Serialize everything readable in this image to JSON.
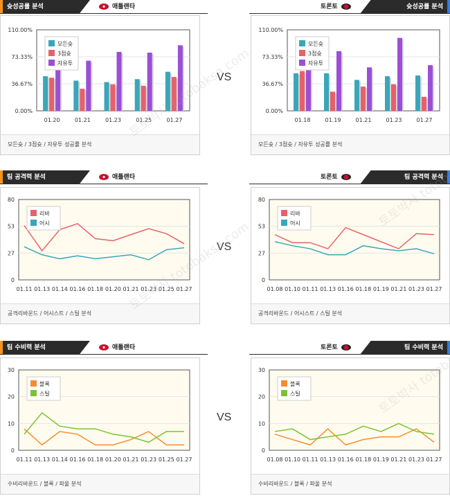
{
  "colors": {
    "accent_left": "#f7941d",
    "accent_right": "#3b7bd6",
    "header_bg": "#2b2b2b"
  },
  "vs_label": "VS",
  "watermark": "토토박사 totobaksa.com",
  "sections": [
    {
      "left": {
        "tab": "슛성공률 분석",
        "team": "애틀랜타",
        "team_logo": "hawks-logo-icon"
      },
      "right": {
        "tab": "슛성공률 분석",
        "team": "토론토",
        "team_logo": "raptors-logo-icon"
      },
      "left_footer": "모든슛 / 3점슛 / 자유투 성공률 분석",
      "right_footer": "모든슛 / 3점슛 / 자유투 성공률 분석"
    },
    {
      "left": {
        "tab": "팀 공격력 분석",
        "team": "애틀랜타",
        "team_logo": "hawks-logo-icon"
      },
      "right": {
        "tab": "팀 공격력 분석",
        "team": "토론토",
        "team_logo": "raptors-logo-icon"
      },
      "left_footer": "공격리바운드 / 어시스트 / 스틸 분석",
      "right_footer": "공격리바운드 / 어시스트 / 스틸 분석"
    },
    {
      "left": {
        "tab": "팀 수비력 분석",
        "team": "애틀랜타",
        "team_logo": "hawks-logo-icon"
      },
      "right": {
        "tab": "팀 수비력 분석",
        "team": "토론토",
        "team_logo": "raptors-logo-icon"
      },
      "left_footer": "수비리바운드 / 블록 / 파울 분석",
      "right_footer": "수비리바운드 / 블록 / 파울 분석"
    }
  ],
  "chart_data": [
    {
      "type": "bar",
      "team": "애틀랜타",
      "categories": [
        "01.20",
        "01.21",
        "01.23",
        "01.25",
        "01.27"
      ],
      "yticks": [
        "110.00%",
        "73.33%",
        "36.67%",
        "0.00%"
      ],
      "ylim": [
        0,
        110
      ],
      "legend_position": "top-left",
      "series": [
        {
          "name": "모든슛",
          "color": "#3aa6b9",
          "values": [
            47,
            41,
            39,
            43,
            53
          ]
        },
        {
          "name": "3점슛",
          "color": "#e8606a",
          "values": [
            45,
            30,
            36,
            34,
            46
          ]
        },
        {
          "name": "자유투",
          "color": "#9b4fd6",
          "values": [
            62,
            68,
            80,
            79,
            89
          ]
        }
      ]
    },
    {
      "type": "bar",
      "team": "토론토",
      "categories": [
        "01.18",
        "01.19",
        "01.21",
        "01.23",
        "01.27"
      ],
      "yticks": [
        "110.00%",
        "73.33%",
        "36.67%",
        "0.00%"
      ],
      "ylim": [
        0,
        110
      ],
      "legend_position": "top-left",
      "series": [
        {
          "name": "모든슛",
          "color": "#3aa6b9",
          "values": [
            51,
            51,
            42,
            47,
            48
          ]
        },
        {
          "name": "3점슛",
          "color": "#e8606a",
          "values": [
            54,
            26,
            33,
            36,
            19
          ]
        },
        {
          "name": "자유투",
          "color": "#9b4fd6",
          "values": [
            65,
            81,
            59,
            99,
            62
          ]
        }
      ]
    },
    {
      "type": "line",
      "team": "애틀랜타",
      "categories": [
        "01.11",
        "01.13",
        "01.14",
        "01.16",
        "01.18",
        "01.20",
        "01.21",
        "01.23",
        "01.25",
        "01.27"
      ],
      "yticks": [
        "80",
        "53",
        "27",
        "0"
      ],
      "ylim": [
        0,
        80
      ],
      "legend_position": "top-left",
      "series": [
        {
          "name": "리바",
          "color": "#e8606a",
          "values": [
            54,
            29,
            50,
            56,
            41,
            39,
            45,
            51,
            46,
            36
          ]
        },
        {
          "name": "어시",
          "color": "#3aa6b9",
          "values": [
            33,
            25,
            21,
            24,
            21,
            23,
            25,
            20,
            30,
            32
          ]
        }
      ]
    },
    {
      "type": "line",
      "team": "토론토",
      "categories": [
        "01.08",
        "01.10",
        "01.11",
        "01.13",
        "01.16",
        "01.18",
        "01.19",
        "01.21",
        "01.23",
        "01.27"
      ],
      "yticks": [
        "80",
        "53",
        "27",
        "0"
      ],
      "ylim": [
        0,
        80
      ],
      "legend_position": "top-left",
      "series": [
        {
          "name": "리바",
          "color": "#e8606a",
          "values": [
            45,
            37,
            37,
            31,
            52,
            45,
            38,
            31,
            46,
            45
          ]
        },
        {
          "name": "어시",
          "color": "#3aa6b9",
          "values": [
            38,
            34,
            31,
            25,
            25,
            34,
            31,
            29,
            31,
            26
          ]
        }
      ]
    },
    {
      "type": "line",
      "team": "애틀랜타",
      "categories": [
        "01.11",
        "01.13",
        "01.14",
        "01.16",
        "01.18",
        "01.20",
        "01.21",
        "01.23",
        "01.25",
        "01.27"
      ],
      "yticks": [
        "30",
        "20",
        "10",
        "0"
      ],
      "ylim": [
        0,
        30
      ],
      "legend_position": "top-left",
      "series": [
        {
          "name": "블록",
          "color": "#f58d2e",
          "values": [
            8,
            2,
            7,
            6,
            2,
            2,
            4,
            7,
            2,
            2
          ]
        },
        {
          "name": "스틸",
          "color": "#7cc22e",
          "values": [
            6,
            14,
            9,
            8,
            8,
            6,
            5,
            3,
            7,
            7
          ]
        }
      ]
    },
    {
      "type": "line",
      "team": "토론토",
      "categories": [
        "01.08",
        "01.10",
        "01.11",
        "01.13",
        "01.16",
        "01.18",
        "01.19",
        "01.21",
        "01.23",
        "01.27"
      ],
      "yticks": [
        "30",
        "20",
        "10",
        "0"
      ],
      "ylim": [
        0,
        30
      ],
      "legend_position": "top-left",
      "series": [
        {
          "name": "블록",
          "color": "#f58d2e",
          "values": [
            6,
            4,
            2,
            8,
            2,
            4,
            5,
            5,
            8,
            3
          ]
        },
        {
          "name": "스틸",
          "color": "#7cc22e",
          "values": [
            7,
            8,
            4,
            5,
            6,
            9,
            7,
            10,
            7,
            6
          ]
        }
      ]
    }
  ]
}
